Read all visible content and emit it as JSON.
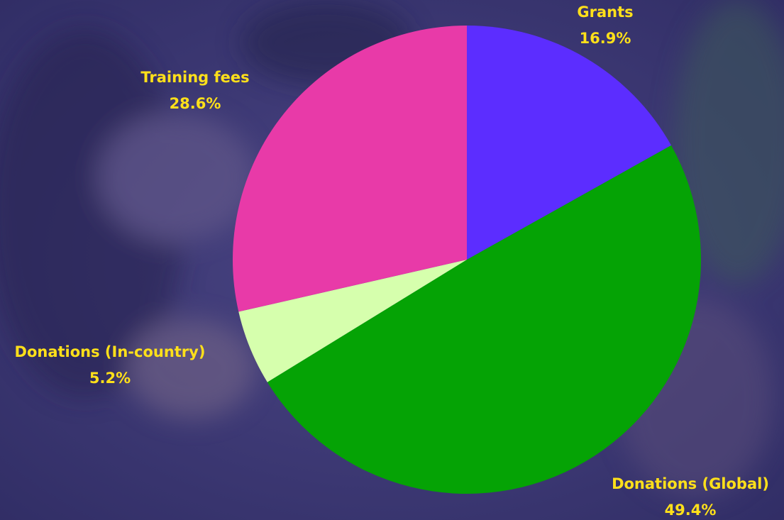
{
  "chart_data": {
    "type": "pie",
    "categories": [
      "Grants",
      "Donations (Global)",
      "Donations (In-country)",
      "Training fees"
    ],
    "values": [
      16.9,
      49.4,
      5.2,
      28.6
    ],
    "value_labels": [
      "16.9%",
      "49.4%",
      "5.2%",
      "28.6%"
    ],
    "colors": [
      "#5c2dff",
      "#05a305",
      "#d6ffad",
      "#e83aa8"
    ]
  }
}
